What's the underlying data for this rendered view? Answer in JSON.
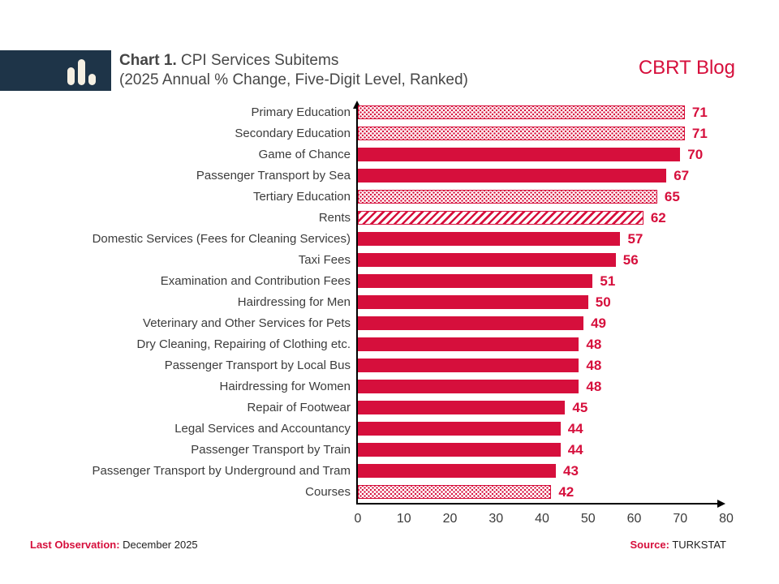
{
  "colors": {
    "accent": "#D60F3C",
    "navy": "#1E3448",
    "text_dark": "#3C3C3C"
  },
  "header": {
    "chart_label": "Chart 1.",
    "title": "CPI Services Subitems",
    "subtitle": "(2025 Annual % Change, Five-Digit Level, Ranked)",
    "brand": "CBRT Blog"
  },
  "chart_data": {
    "type": "bar",
    "orientation": "horizontal",
    "title": "Chart 1. CPI Services Subitems (2025 Annual % Change, Five-Digit Level, Ranked)",
    "xlabel": "",
    "ylabel": "",
    "xlim": [
      0,
      80
    ],
    "xticks": [
      0,
      10,
      20,
      30,
      40,
      50,
      60,
      70,
      80
    ],
    "grid": false,
    "legend": false,
    "categories": [
      "Primary Education",
      "Secondary Education",
      "Game of Chance",
      "Passenger Transport by Sea",
      "Tertiary Education",
      "Rents",
      "Domestic Services (Fees for Cleaning Services)",
      "Taxi Fees",
      "Examination and Contribution Fees",
      "Hairdressing for Men",
      "Veterinary and Other Services for Pets",
      "Dry Cleaning, Repairing of Clothing etc.",
      "Passenger Transport by Local Bus",
      "Hairdressing for Women",
      "Repair of Footwear",
      "Legal Services and Accountancy",
      "Passenger Transport by Train",
      "Passenger Transport by Underground and Tram",
      "Courses"
    ],
    "values": [
      71,
      71,
      70,
      67,
      65,
      62,
      57,
      56,
      51,
      50,
      49,
      48,
      48,
      48,
      45,
      44,
      44,
      43,
      42
    ],
    "fills": [
      "dots",
      "dots",
      "solid",
      "solid",
      "dots",
      "hatch",
      "solid",
      "solid",
      "solid",
      "solid",
      "solid",
      "solid",
      "solid",
      "solid",
      "solid",
      "solid",
      "solid",
      "solid",
      "dots"
    ]
  },
  "footer": {
    "last_obs_label": "Last Observation:",
    "last_obs_value": "December 2025",
    "source_label": "Source:",
    "source_value": "TURKSTAT"
  }
}
